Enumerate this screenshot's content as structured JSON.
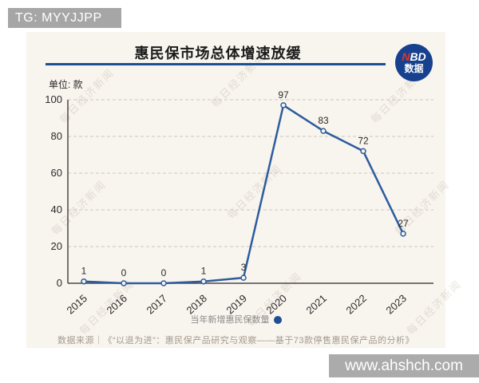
{
  "header": {
    "tag_label": "TG: MYYJJPP"
  },
  "panel": {
    "title": "惠民保市场总体增速放缓",
    "unit_label": "单位: 款",
    "logo": {
      "n": "N",
      "bd": "BD",
      "line2": "数据"
    },
    "legend_label": "当年新增惠民保数量",
    "source": "数据来源｜《“以退为进”：惠民保产品研究与观察——基于73款停售惠民保产品的分析》",
    "watermark_text": "每日经济新闻"
  },
  "footer": {
    "site_watermark": "www.ahshch.com"
  },
  "chart_data": {
    "type": "line",
    "title": "惠民保市场总体增速放缓",
    "categories": [
      "2015",
      "2016",
      "2017",
      "2018",
      "2019",
      "2020",
      "2021",
      "2022",
      "2023"
    ],
    "values": [
      1,
      0,
      0,
      1,
      3,
      97,
      83,
      72,
      27
    ],
    "series_name": "当年新增惠民保数量",
    "unit": "款",
    "ylim": [
      0,
      100
    ],
    "yticks": [
      0,
      20,
      40,
      60,
      80,
      100
    ],
    "grid": "dashed-horizontal",
    "legend_position": "bottom",
    "colors": {
      "line": "#2d5c9e",
      "marker_fill": "#f8f4ee",
      "accent": "#1d4f93",
      "axis": "#4a4a4a",
      "grid": "#cdc8c0",
      "label": "#2b2b2b"
    }
  }
}
